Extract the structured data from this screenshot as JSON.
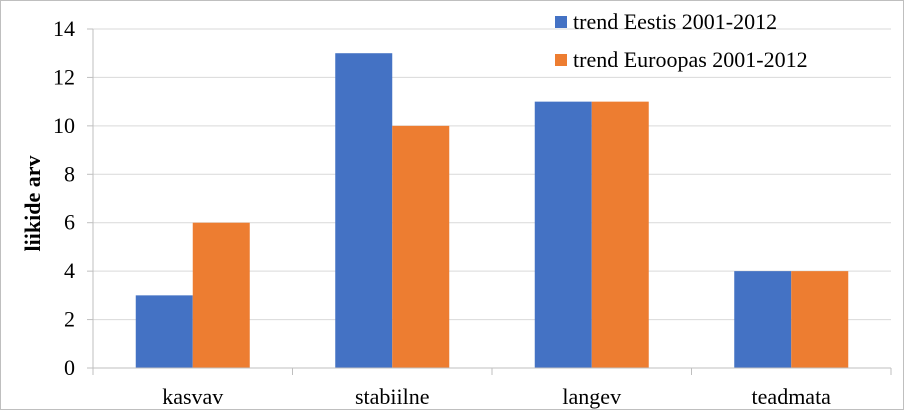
{
  "chart_data": {
    "type": "bar",
    "categories": [
      "kasvav",
      "stabiilne",
      "langev",
      "teadmata"
    ],
    "series": [
      {
        "name": "trend Eestis 2001-2012",
        "values": [
          3,
          13,
          11,
          4
        ],
        "color": "#4472c4"
      },
      {
        "name": "trend Euroopas 2001-2012",
        "values": [
          6,
          10,
          11,
          4
        ],
        "color": "#ed7d31"
      }
    ],
    "title": "",
    "xlabel": "",
    "ylabel": "liikide arv",
    "ylim": [
      0,
      14
    ],
    "yticks": [
      0,
      2,
      4,
      6,
      8,
      10,
      12,
      14
    ],
    "grid": true,
    "legend_position": "top-right",
    "gridline_color": "#d9d9d9",
    "axis_color": "#bfbfbf"
  }
}
